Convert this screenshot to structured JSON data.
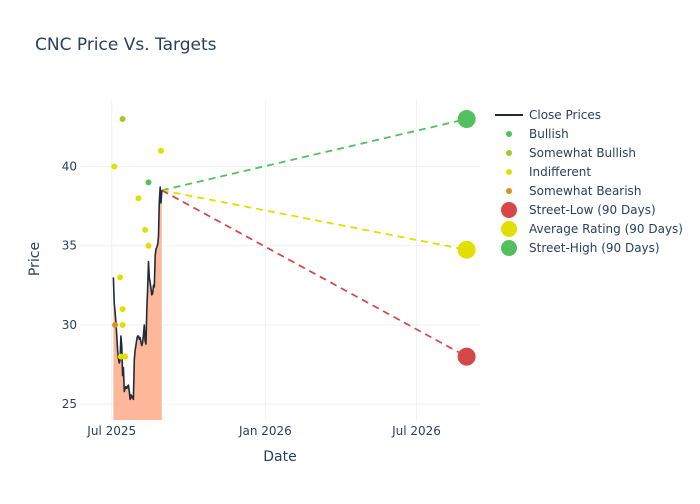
{
  "chart_data": {
    "type": "scatter",
    "title": "CNC Price Vs. Targets",
    "xlabel": "Date",
    "ylabel": "Price",
    "xlim": [
      "2025-05-24",
      "2026-09-15"
    ],
    "ylim": [
      24,
      44.2
    ],
    "x_ticks": [
      {
        "date": "2025-07-01",
        "label": "Jul 2025"
      },
      {
        "date": "2026-01-01",
        "label": "Jan 2026"
      },
      {
        "date": "2026-07-01",
        "label": "Jul 2026"
      }
    ],
    "y_ticks": [
      25,
      30,
      35,
      40
    ],
    "grid": true,
    "legend_position": "right",
    "colors": {
      "close": "#222c38",
      "fill": "#fdb08f",
      "bullish": "#52c05f",
      "somewhat_bullish": "#98cd2c",
      "indifferent": "#e2df00",
      "somewhat_bearish": "#d99124",
      "street_low": "#d64848",
      "average": "#e2df00",
      "street_high": "#52c05f"
    },
    "series": [
      {
        "name": "Close Prices",
        "kind": "line",
        "points": [
          [
            "2025-07-03",
            33.0
          ],
          [
            "2025-07-04",
            31.4
          ],
          [
            "2025-07-05",
            30.8
          ],
          [
            "2025-07-06",
            30.2
          ],
          [
            "2025-07-07",
            29.4
          ],
          [
            "2025-07-08",
            28.4
          ],
          [
            "2025-07-09",
            27.9
          ],
          [
            "2025-07-10",
            27.6
          ],
          [
            "2025-07-11",
            27.8
          ],
          [
            "2025-07-12",
            29.3
          ],
          [
            "2025-07-13",
            28.6
          ],
          [
            "2025-07-14",
            26.8
          ],
          [
            "2025-07-15",
            27.3
          ],
          [
            "2025-07-16",
            25.8
          ],
          [
            "2025-07-17",
            26.0
          ],
          [
            "2025-07-18",
            26.1
          ],
          [
            "2025-07-19",
            26.0
          ],
          [
            "2025-07-21",
            26.2
          ],
          [
            "2025-07-22",
            25.8
          ],
          [
            "2025-07-23",
            25.3
          ],
          [
            "2025-07-24",
            25.6
          ],
          [
            "2025-07-25",
            25.4
          ],
          [
            "2025-07-26",
            25.5
          ],
          [
            "2025-07-27",
            25.3
          ],
          [
            "2025-07-28",
            27.8
          ],
          [
            "2025-07-29",
            28.4
          ],
          [
            "2025-07-30",
            28.7
          ],
          [
            "2025-07-31",
            29.1
          ],
          [
            "2025-08-01",
            29.3
          ],
          [
            "2025-08-02",
            29.3
          ],
          [
            "2025-08-03",
            29.1
          ],
          [
            "2025-08-04",
            29.2
          ],
          [
            "2025-08-05",
            28.9
          ],
          [
            "2025-08-06",
            28.7
          ],
          [
            "2025-08-07",
            28.9
          ],
          [
            "2025-08-08",
            29.4
          ],
          [
            "2025-08-09",
            30.0
          ],
          [
            "2025-08-10",
            29.0
          ],
          [
            "2025-08-11",
            28.8
          ],
          [
            "2025-08-12",
            31.0
          ],
          [
            "2025-08-13",
            32.2
          ],
          [
            "2025-08-14",
            34.0
          ],
          [
            "2025-08-15",
            33.0
          ],
          [
            "2025-08-16",
            32.7
          ],
          [
            "2025-08-17",
            32.3
          ],
          [
            "2025-08-18",
            31.9
          ],
          [
            "2025-08-19",
            32.0
          ],
          [
            "2025-08-20",
            32.5
          ],
          [
            "2025-08-21",
            32.4
          ],
          [
            "2025-08-22",
            34.4
          ],
          [
            "2025-08-23",
            34.8
          ],
          [
            "2025-08-24",
            34.9
          ],
          [
            "2025-08-25",
            35.1
          ],
          [
            "2025-08-26",
            35.6
          ],
          [
            "2025-08-27",
            37.8
          ],
          [
            "2025-08-28",
            38.7
          ],
          [
            "2025-08-29",
            37.7
          ],
          [
            "2025-08-30",
            38.5
          ]
        ]
      },
      {
        "name": "Bullish",
        "kind": "markers",
        "points": [
          [
            "2025-08-14",
            39.0
          ]
        ]
      },
      {
        "name": "Somewhat Bullish",
        "kind": "markers",
        "points": [
          [
            "2025-07-14",
            43.0
          ]
        ]
      },
      {
        "name": "Indifferent",
        "kind": "markers",
        "points": [
          [
            "2025-07-04",
            40.0
          ],
          [
            "2025-07-11",
            33.0
          ],
          [
            "2025-07-12",
            28.0
          ],
          [
            "2025-07-14",
            31.0
          ],
          [
            "2025-07-14",
            30.0
          ],
          [
            "2025-07-17",
            28.0
          ],
          [
            "2025-08-02",
            38.0
          ],
          [
            "2025-08-10",
            36.0
          ],
          [
            "2025-08-14",
            35.0
          ],
          [
            "2025-08-29",
            41.0
          ]
        ]
      },
      {
        "name": "Somewhat Bearish",
        "kind": "markers",
        "points": [
          [
            "2025-07-05",
            30.0
          ]
        ]
      },
      {
        "name": "Street-Low (90 Days)",
        "kind": "target",
        "points": [
          [
            "2025-08-30",
            38.5
          ],
          [
            "2026-08-30",
            28.0
          ]
        ]
      },
      {
        "name": "Average Rating (90 Days)",
        "kind": "target",
        "points": [
          [
            "2025-08-30",
            38.5
          ],
          [
            "2026-08-30",
            34.75
          ]
        ]
      },
      {
        "name": "Street-High (90 Days)",
        "kind": "target",
        "points": [
          [
            "2025-08-30",
            38.5
          ],
          [
            "2026-08-30",
            43.0
          ]
        ]
      }
    ]
  }
}
